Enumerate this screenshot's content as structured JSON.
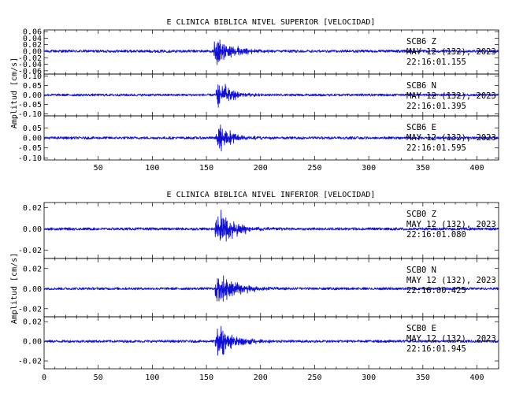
{
  "colors": {
    "trace": "#1010d8",
    "axes": "#000000",
    "background": "#ffffff"
  },
  "chart_data": [
    {
      "type": "line",
      "title": "E CLINICA BIBLICA NIVEL SUPERIOR [VELOCIDAD]",
      "ylabel": "Amplitud [cm/s]",
      "xlim": [
        0,
        420
      ],
      "x_ticks": [
        50,
        100,
        150,
        200,
        250,
        300,
        350,
        400
      ],
      "x_tick_labels": [
        "50",
        "100",
        "150",
        "200",
        "250",
        "300",
        "350",
        "400"
      ],
      "grid": false,
      "traces": [
        {
          "station": "SCB6",
          "component": "Z",
          "date": "MAY 12 (132), 2023",
          "time": "22:16:01.155",
          "ylim": [
            -0.07,
            0.065
          ],
          "y_ticks": [
            0.06,
            0.04,
            0.02,
            0.0,
            -0.02,
            -0.04,
            -0.06
          ],
          "y_tick_labels": [
            "0.06",
            "0.04",
            "0.02",
            "0.00",
            "-0.02",
            "-0.04",
            "-0.06"
          ],
          "onset_s": 157,
          "peak_amplitude": 0.06,
          "noise_amplitude": 0.004,
          "decay_s": 14
        },
        {
          "station": "SCB6",
          "component": "N",
          "date": "MAY 12 (132), 2023",
          "time": "22:16:01.395",
          "ylim": [
            -0.11,
            0.11
          ],
          "y_ticks": [
            0.1,
            0.05,
            0.0,
            -0.05,
            -0.1
          ],
          "y_tick_labels": [
            "0.10",
            "0.05",
            "0.00",
            "-0.05",
            "-0.10"
          ],
          "onset_s": 159,
          "peak_amplitude": 0.09,
          "noise_amplitude": 0.006,
          "decay_s": 12
        },
        {
          "station": "SCB6",
          "component": "E",
          "date": "MAY 12 (132), 2023",
          "time": "22:16:01.595",
          "ylim": [
            -0.11,
            0.11
          ],
          "y_ticks": [
            0.05,
            0.0,
            -0.05,
            -0.1
          ],
          "y_tick_labels": [
            "0.05",
            "0.00",
            "-0.05",
            "-0.10"
          ],
          "onset_s": 159,
          "peak_amplitude": 0.085,
          "noise_amplitude": 0.006,
          "decay_s": 12
        }
      ]
    },
    {
      "type": "line",
      "title": "E CLINICA BIBLICA NIVEL INFERIOR [VELOCIDAD]",
      "ylabel": "Amplitud [cm/s]",
      "xlim": [
        0,
        420
      ],
      "x_ticks": [
        0,
        50,
        100,
        150,
        200,
        250,
        300,
        350,
        400
      ],
      "x_tick_labels": [
        "0",
        "50",
        "100",
        "150",
        "200",
        "250",
        "300",
        "350",
        "400"
      ],
      "grid": false,
      "traces": [
        {
          "station": "SCB0",
          "component": "Z",
          "date": "MAY 12 (132), 2023",
          "time": "22:16:01.080",
          "ylim": [
            -0.028,
            0.025
          ],
          "y_ticks": [
            0.02,
            0.0,
            -0.02
          ],
          "y_tick_labels": [
            "0.02",
            "0.00",
            "-0.02"
          ],
          "onset_s": 158,
          "peak_amplitude": 0.022,
          "noise_amplitude": 0.0012,
          "decay_s": 16
        },
        {
          "station": "SCB0",
          "component": "N",
          "date": "MAY 12 (132), 2023",
          "time": "22:16:00.425",
          "ylim": [
            -0.028,
            0.03
          ],
          "y_ticks": [
            0.02,
            0.0,
            -0.02
          ],
          "y_tick_labels": [
            "0.02",
            "0.00",
            "-0.02"
          ],
          "onset_s": 158,
          "peak_amplitude": 0.025,
          "noise_amplitude": 0.0012,
          "decay_s": 15
        },
        {
          "station": "SCB0",
          "component": "E",
          "date": "MAY 12 (132), 2023",
          "time": "22:16:01.945",
          "ylim": [
            -0.028,
            0.025
          ],
          "y_ticks": [
            0.02,
            0.0,
            -0.02
          ],
          "y_tick_labels": [
            "0.02",
            "0.00",
            "-0.02"
          ],
          "onset_s": 158,
          "peak_amplitude": 0.022,
          "noise_amplitude": 0.0012,
          "decay_s": 15
        }
      ]
    }
  ]
}
